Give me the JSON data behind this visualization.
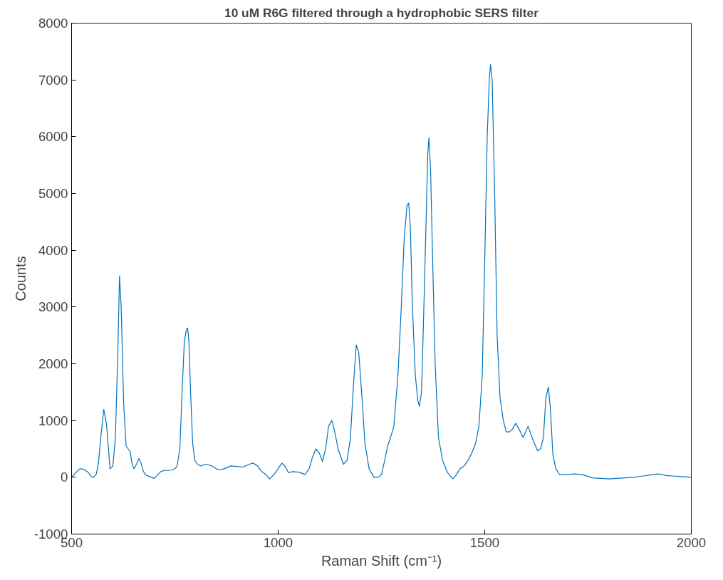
{
  "chart_data": {
    "type": "line",
    "title": "10 uM R6G filtered through a hydrophobic SERS filter",
    "xlabel": "Raman Shift (cm⁻¹)",
    "ylabel": "Counts",
    "xlim": [
      500,
      2000
    ],
    "ylim": [
      -1000,
      8000
    ],
    "xticks": [
      500,
      1000,
      1500,
      2000
    ],
    "yticks": [
      -1000,
      0,
      1000,
      2000,
      3000,
      4000,
      5000,
      6000,
      7000,
      8000
    ],
    "series": [
      {
        "color": "#0072bd",
        "x": [
          500,
          510,
          520,
          530,
          540,
          548,
          553,
          560,
          565,
          572,
          578,
          585,
          593,
          600,
          606,
          612,
          616,
          620,
          626,
          632,
          637,
          642,
          646,
          651,
          657,
          663,
          668,
          674,
          680,
          693,
          700,
          708,
          716,
          724,
          733,
          745,
          755,
          762,
          768,
          773,
          778,
          781,
          784,
          788,
          793,
          798,
          805,
          812,
          825,
          840,
          855,
          870,
          885,
          900,
          915,
          930,
          940,
          950,
          960,
          970,
          979,
          990,
          1000,
          1009,
          1018,
          1025,
          1035,
          1050,
          1065,
          1075,
          1083,
          1091,
          1100,
          1107,
          1115,
          1122,
          1130,
          1137,
          1145,
          1158,
          1167,
          1175,
          1182,
          1189,
          1195,
          1202,
          1210,
          1220,
          1232,
          1242,
          1250,
          1258,
          1265,
          1272,
          1280,
          1290,
          1298,
          1305,
          1312,
          1316,
          1320,
          1325,
          1332,
          1338,
          1342,
          1347,
          1352,
          1358,
          1362,
          1365,
          1369,
          1374,
          1380,
          1388,
          1398,
          1410,
          1423,
          1432,
          1440,
          1450,
          1460,
          1470,
          1478,
          1486,
          1494,
          1500,
          1506,
          1511,
          1514,
          1518,
          1524,
          1530,
          1537,
          1545,
          1552,
          1560,
          1567,
          1575,
          1583,
          1593,
          1599,
          1605,
          1612,
          1620,
          1628,
          1635,
          1642,
          1648,
          1654,
          1659,
          1665,
          1672,
          1681,
          1700,
          1720,
          1740,
          1760,
          1780,
          1800,
          1820,
          1840,
          1860,
          1880,
          1900,
          1920,
          1940,
          1960,
          1980,
          2000
        ],
        "values": [
          0,
          80,
          150,
          140,
          90,
          10,
          0,
          60,
          250,
          800,
          1200,
          900,
          150,
          200,
          700,
          2200,
          3550,
          3000,
          1300,
          550,
          500,
          450,
          250,
          150,
          230,
          330,
          250,
          100,
          40,
          0,
          -20,
          40,
          100,
          120,
          120,
          130,
          180,
          500,
          1600,
          2400,
          2600,
          2630,
          2400,
          1500,
          600,
          300,
          230,
          200,
          230,
          200,
          130,
          150,
          200,
          190,
          180,
          230,
          250,
          200,
          100,
          50,
          -30,
          50,
          150,
          250,
          180,
          80,
          100,
          90,
          50,
          150,
          350,
          500,
          420,
          280,
          500,
          900,
          1000,
          800,
          500,
          230,
          300,
          700,
          1600,
          2330,
          2200,
          1500,
          600,
          150,
          0,
          0,
          50,
          300,
          550,
          700,
          900,
          1800,
          3000,
          4200,
          4800,
          4830,
          4400,
          3000,
          1800,
          1350,
          1250,
          1500,
          2800,
          4500,
          5700,
          5980,
          5400,
          3800,
          2000,
          700,
          300,
          80,
          -30,
          50,
          150,
          200,
          300,
          450,
          600,
          900,
          1800,
          3800,
          6000,
          7000,
          7270,
          7000,
          5000,
          2500,
          1400,
          1000,
          800,
          800,
          850,
          950,
          850,
          700,
          800,
          900,
          750,
          600,
          470,
          500,
          700,
          1400,
          1590,
          1200,
          400,
          150,
          50,
          50,
          60,
          40,
          -10,
          -20,
          -30,
          -20,
          -10,
          0,
          20,
          40,
          60,
          30,
          20,
          10,
          0
        ]
      }
    ]
  }
}
